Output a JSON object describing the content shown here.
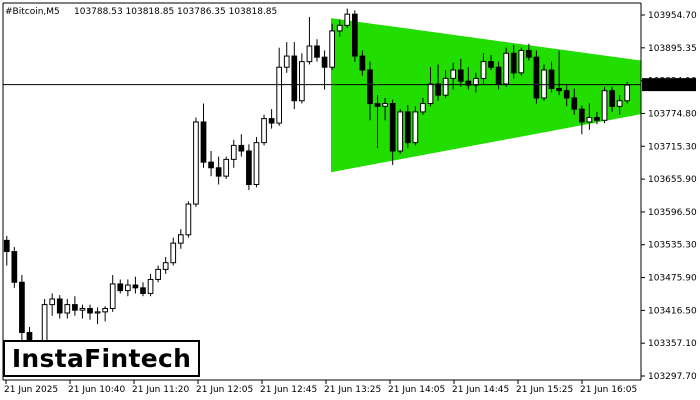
{
  "header": {
    "symbol": "#Bitcoin,M5",
    "ohlc": "103788.53 103818.85 103786.35 103818.85"
  },
  "logo": {
    "text": "InstaFintech"
  },
  "current_price_label": "103818.85",
  "colors": {
    "pattern_fill": "#22dd00",
    "candle_stroke": "#000000",
    "bull_fill": "#ffffff",
    "bear_fill": "#000000",
    "price_line": "#000000",
    "price_tag_bg": "#000000",
    "price_tag_text": "#ffffff"
  },
  "chart_data": {
    "type": "candlestick",
    "title": "",
    "xlabel": "",
    "ylabel": "",
    "ylim": [
      103290,
      103965
    ],
    "y_ticks": [
      "103954.70",
      "103895.35",
      "103834.10",
      "103774.80",
      "103715.30",
      "103655.90",
      "103596.50",
      "103535.30",
      "103475.90",
      "103416.50",
      "103357.10",
      "103297.70"
    ],
    "x_ticks": [
      "21 Jun 2025",
      "21 Jun 10:40",
      "21 Jun 11:20",
      "21 Jun 12:05",
      "21 Jun 12:45",
      "21 Jun 13:25",
      "21 Jun 14:05",
      "21 Jun 14:45",
      "21 Jun 15:25",
      "21 Jun 16:05"
    ],
    "current_price": 103818.85,
    "pattern": {
      "type": "symmetrical-triangle",
      "upper_start_price": 103938,
      "upper_end_price": 103862,
      "lower_start_price": 103662,
      "lower_end_price": 103766
    },
    "candles": [
      {
        "o": 103540,
        "h": 103548,
        "l": 103495,
        "c": 103520
      },
      {
        "o": 103520,
        "h": 103528,
        "l": 103455,
        "c": 103465
      },
      {
        "o": 103465,
        "h": 103478,
        "l": 103360,
        "c": 103375
      },
      {
        "o": 103375,
        "h": 103385,
        "l": 103330,
        "c": 103345
      },
      {
        "o": 103345,
        "h": 103360,
        "l": 103320,
        "c": 103330
      },
      {
        "o": 103330,
        "h": 103435,
        "l": 103320,
        "c": 103425
      },
      {
        "o": 103425,
        "h": 103445,
        "l": 103405,
        "c": 103435
      },
      {
        "o": 103435,
        "h": 103442,
        "l": 103400,
        "c": 103410
      },
      {
        "o": 103410,
        "h": 103435,
        "l": 103400,
        "c": 103425
      },
      {
        "o": 103425,
        "h": 103440,
        "l": 103405,
        "c": 103415
      },
      {
        "o": 103415,
        "h": 103425,
        "l": 103400,
        "c": 103418
      },
      {
        "o": 103418,
        "h": 103425,
        "l": 103398,
        "c": 103410
      },
      {
        "o": 103410,
        "h": 103420,
        "l": 103390,
        "c": 103412
      },
      {
        "o": 103412,
        "h": 103422,
        "l": 103395,
        "c": 103418
      },
      {
        "o": 103418,
        "h": 103478,
        "l": 103412,
        "c": 103462
      },
      {
        "o": 103462,
        "h": 103470,
        "l": 103445,
        "c": 103450
      },
      {
        "o": 103450,
        "h": 103470,
        "l": 103440,
        "c": 103460
      },
      {
        "o": 103460,
        "h": 103475,
        "l": 103445,
        "c": 103455
      },
      {
        "o": 103455,
        "h": 103465,
        "l": 103440,
        "c": 103445
      },
      {
        "o": 103445,
        "h": 103480,
        "l": 103440,
        "c": 103470
      },
      {
        "o": 103470,
        "h": 103495,
        "l": 103465,
        "c": 103488
      },
      {
        "o": 103488,
        "h": 103510,
        "l": 103480,
        "c": 103500
      },
      {
        "o": 103500,
        "h": 103545,
        "l": 103495,
        "c": 103535
      },
      {
        "o": 103535,
        "h": 103560,
        "l": 103525,
        "c": 103550
      },
      {
        "o": 103550,
        "h": 103610,
        "l": 103545,
        "c": 103605
      },
      {
        "o": 103605,
        "h": 103760,
        "l": 103600,
        "c": 103752
      },
      {
        "o": 103752,
        "h": 103785,
        "l": 103670,
        "c": 103680
      },
      {
        "o": 103680,
        "h": 103700,
        "l": 103655,
        "c": 103670
      },
      {
        "o": 103670,
        "h": 103690,
        "l": 103640,
        "c": 103655
      },
      {
        "o": 103655,
        "h": 103690,
        "l": 103650,
        "c": 103685
      },
      {
        "o": 103685,
        "h": 103720,
        "l": 103670,
        "c": 103710
      },
      {
        "o": 103710,
        "h": 103730,
        "l": 103690,
        "c": 103700
      },
      {
        "o": 103700,
        "h": 103712,
        "l": 103630,
        "c": 103640
      },
      {
        "o": 103640,
        "h": 103725,
        "l": 103635,
        "c": 103715
      },
      {
        "o": 103715,
        "h": 103765,
        "l": 103710,
        "c": 103758
      },
      {
        "o": 103758,
        "h": 103775,
        "l": 103740,
        "c": 103750
      },
      {
        "o": 103750,
        "h": 103885,
        "l": 103745,
        "c": 103850
      },
      {
        "o": 103850,
        "h": 103895,
        "l": 103840,
        "c": 103870
      },
      {
        "o": 103870,
        "h": 103895,
        "l": 103775,
        "c": 103790
      },
      {
        "o": 103790,
        "h": 103875,
        "l": 103785,
        "c": 103860
      },
      {
        "o": 103860,
        "h": 103940,
        "l": 103855,
        "c": 103888
      },
      {
        "o": 103888,
        "h": 103900,
        "l": 103860,
        "c": 103868
      },
      {
        "o": 103868,
        "h": 103880,
        "l": 103810,
        "c": 103850
      },
      {
        "o": 103850,
        "h": 103928,
        "l": 103845,
        "c": 103915
      },
      {
        "o": 103915,
        "h": 103935,
        "l": 103905,
        "c": 103925
      },
      {
        "o": 103925,
        "h": 103955,
        "l": 103920,
        "c": 103945
      },
      {
        "o": 103945,
        "h": 103952,
        "l": 103860,
        "c": 103870
      },
      {
        "o": 103870,
        "h": 103880,
        "l": 103835,
        "c": 103845
      },
      {
        "o": 103845,
        "h": 103860,
        "l": 103755,
        "c": 103785
      },
      {
        "o": 103785,
        "h": 103800,
        "l": 103705,
        "c": 103780
      },
      {
        "o": 103780,
        "h": 103795,
        "l": 103755,
        "c": 103785
      },
      {
        "o": 103785,
        "h": 103792,
        "l": 103675,
        "c": 103700
      },
      {
        "o": 103700,
        "h": 103775,
        "l": 103695,
        "c": 103770
      },
      {
        "o": 103770,
        "h": 103782,
        "l": 103705,
        "c": 103715
      },
      {
        "o": 103715,
        "h": 103780,
        "l": 103710,
        "c": 103770
      },
      {
        "o": 103770,
        "h": 103795,
        "l": 103765,
        "c": 103785
      },
      {
        "o": 103785,
        "h": 103850,
        "l": 103780,
        "c": 103820
      },
      {
        "o": 103820,
        "h": 103855,
        "l": 103790,
        "c": 103800
      },
      {
        "o": 103800,
        "h": 103845,
        "l": 103795,
        "c": 103830
      },
      {
        "o": 103830,
        "h": 103858,
        "l": 103810,
        "c": 103845
      },
      {
        "o": 103845,
        "h": 103865,
        "l": 103815,
        "c": 103825
      },
      {
        "o": 103825,
        "h": 103850,
        "l": 103810,
        "c": 103818
      },
      {
        "o": 103818,
        "h": 103840,
        "l": 103805,
        "c": 103830
      },
      {
        "o": 103830,
        "h": 103875,
        "l": 103820,
        "c": 103860
      },
      {
        "o": 103860,
        "h": 103872,
        "l": 103845,
        "c": 103850
      },
      {
        "o": 103850,
        "h": 103860,
        "l": 103810,
        "c": 103820
      },
      {
        "o": 103820,
        "h": 103885,
        "l": 103815,
        "c": 103875
      },
      {
        "o": 103875,
        "h": 103890,
        "l": 103830,
        "c": 103840
      },
      {
        "o": 103840,
        "h": 103885,
        "l": 103835,
        "c": 103880
      },
      {
        "o": 103880,
        "h": 103892,
        "l": 103862,
        "c": 103868
      },
      {
        "o": 103868,
        "h": 103880,
        "l": 103785,
        "c": 103795
      },
      {
        "o": 103795,
        "h": 103855,
        "l": 103790,
        "c": 103845
      },
      {
        "o": 103845,
        "h": 103860,
        "l": 103805,
        "c": 103812
      },
      {
        "o": 103812,
        "h": 103880,
        "l": 103800,
        "c": 103808
      },
      {
        "o": 103808,
        "h": 103820,
        "l": 103780,
        "c": 103795
      },
      {
        "o": 103795,
        "h": 103812,
        "l": 103765,
        "c": 103775
      },
      {
        "o": 103775,
        "h": 103782,
        "l": 103730,
        "c": 103752
      },
      {
        "o": 103752,
        "h": 103785,
        "l": 103738,
        "c": 103760
      },
      {
        "o": 103760,
        "h": 103770,
        "l": 103748,
        "c": 103755
      },
      {
        "o": 103755,
        "h": 103815,
        "l": 103750,
        "c": 103808
      },
      {
        "o": 103808,
        "h": 103815,
        "l": 103770,
        "c": 103780
      },
      {
        "o": 103780,
        "h": 103800,
        "l": 103765,
        "c": 103790
      },
      {
        "o": 103790,
        "h": 103824,
        "l": 103785,
        "c": 103818
      }
    ]
  }
}
